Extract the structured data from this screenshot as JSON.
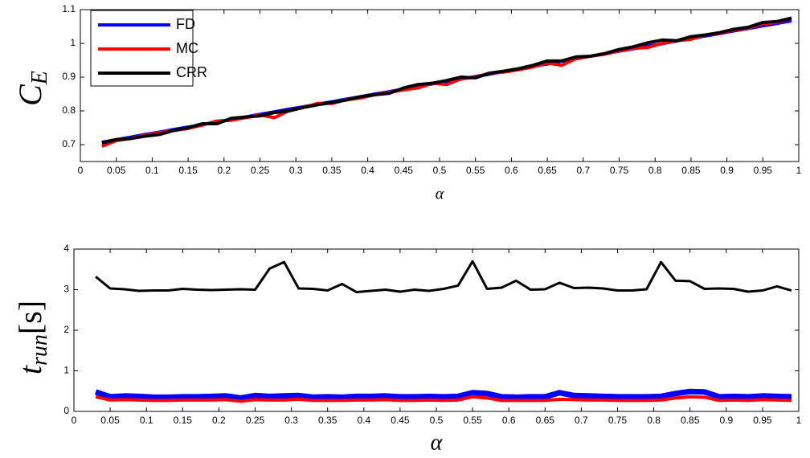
{
  "chart_data": [
    {
      "type": "line",
      "xlabel": "α",
      "ylabel": {
        "text": "C",
        "sub": "E"
      },
      "x": [
        0.03,
        0.05,
        0.07,
        0.09,
        0.11,
        0.13,
        0.15,
        0.17,
        0.19,
        0.21,
        0.23,
        0.25,
        0.27,
        0.29,
        0.31,
        0.33,
        0.35,
        0.37,
        0.39,
        0.41,
        0.43,
        0.45,
        0.47,
        0.49,
        0.51,
        0.53,
        0.55,
        0.57,
        0.59,
        0.61,
        0.63,
        0.65,
        0.67,
        0.69,
        0.71,
        0.73,
        0.75,
        0.77,
        0.79,
        0.81,
        0.83,
        0.85,
        0.87,
        0.89,
        0.91,
        0.93,
        0.95,
        0.97,
        0.99
      ],
      "series": [
        {
          "name": "FD",
          "color": "#0000ff",
          "values": [
            0.707,
            0.715,
            0.722,
            0.73,
            0.737,
            0.745,
            0.752,
            0.76,
            0.767,
            0.775,
            0.782,
            0.79,
            0.797,
            0.805,
            0.812,
            0.82,
            0.827,
            0.835,
            0.842,
            0.85,
            0.857,
            0.865,
            0.872,
            0.88,
            0.887,
            0.894,
            0.902,
            0.909,
            0.917,
            0.924,
            0.932,
            0.939,
            0.947,
            0.954,
            0.962,
            0.969,
            0.977,
            0.984,
            0.992,
            0.999,
            1.007,
            1.014,
            1.022,
            1.029,
            1.037,
            1.044,
            1.052,
            1.059,
            1.067
          ]
        },
        {
          "name": "MC",
          "color": "#ff0000",
          "values": [
            0.695,
            0.712,
            0.718,
            0.728,
            0.735,
            0.742,
            0.748,
            0.758,
            0.77,
            0.772,
            0.78,
            0.788,
            0.78,
            0.8,
            0.81,
            0.822,
            0.822,
            0.833,
            0.838,
            0.848,
            0.855,
            0.862,
            0.868,
            0.882,
            0.878,
            0.895,
            0.9,
            0.912,
            0.915,
            0.922,
            0.93,
            0.942,
            0.935,
            0.955,
            0.962,
            0.968,
            0.978,
            0.985,
            0.988,
            1.0,
            1.008,
            1.012,
            1.025,
            1.03,
            1.04,
            1.045,
            1.058,
            1.062,
            1.075
          ]
        },
        {
          "name": "CRR",
          "color": "#000000",
          "values": [
            0.705,
            0.715,
            0.718,
            0.725,
            0.73,
            0.742,
            0.75,
            0.762,
            0.762,
            0.778,
            0.782,
            0.785,
            0.795,
            0.8,
            0.81,
            0.818,
            0.825,
            0.832,
            0.842,
            0.848,
            0.852,
            0.868,
            0.878,
            0.882,
            0.89,
            0.9,
            0.898,
            0.912,
            0.918,
            0.925,
            0.935,
            0.948,
            0.948,
            0.96,
            0.962,
            0.97,
            0.982,
            0.99,
            1.002,
            1.01,
            1.008,
            1.02,
            1.025,
            1.032,
            1.042,
            1.048,
            1.062,
            1.065,
            1.075
          ]
        }
      ],
      "xlim": [
        0,
        1
      ],
      "xticks": [
        0,
        0.05,
        0.1,
        0.15,
        0.2,
        0.25,
        0.3,
        0.35,
        0.4,
        0.45,
        0.5,
        0.55,
        0.6,
        0.65,
        0.7,
        0.75,
        0.8,
        0.85,
        0.9,
        0.95,
        1
      ],
      "ylim": [
        0.65,
        1.1
      ],
      "yticks": [
        0.7,
        0.8,
        0.9,
        1,
        1.1
      ],
      "legend": "upper left"
    },
    {
      "type": "line",
      "xlabel": "α",
      "ylabel": {
        "text": "t",
        "sub": "run",
        "after": "[s]"
      },
      "x": [
        0.03,
        0.05,
        0.07,
        0.09,
        0.11,
        0.13,
        0.15,
        0.17,
        0.19,
        0.21,
        0.23,
        0.25,
        0.27,
        0.29,
        0.31,
        0.33,
        0.35,
        0.37,
        0.39,
        0.41,
        0.43,
        0.45,
        0.47,
        0.49,
        0.51,
        0.53,
        0.55,
        0.57,
        0.59,
        0.61,
        0.63,
        0.65,
        0.67,
        0.69,
        0.71,
        0.73,
        0.75,
        0.77,
        0.79,
        0.81,
        0.83,
        0.85,
        0.87,
        0.89,
        0.91,
        0.93,
        0.95,
        0.97,
        0.99
      ],
      "series": [
        {
          "color": "#0000ff",
          "values": [
            0.48,
            0.36,
            0.38,
            0.37,
            0.35,
            0.35,
            0.36,
            0.36,
            0.37,
            0.38,
            0.33,
            0.39,
            0.37,
            0.38,
            0.39,
            0.35,
            0.36,
            0.35,
            0.37,
            0.37,
            0.38,
            0.36,
            0.36,
            0.37,
            0.36,
            0.37,
            0.46,
            0.44,
            0.36,
            0.35,
            0.36,
            0.36,
            0.46,
            0.39,
            0.38,
            0.37,
            0.36,
            0.36,
            0.36,
            0.37,
            0.44,
            0.49,
            0.48,
            0.36,
            0.37,
            0.36,
            0.38,
            0.37,
            0.36
          ]
        },
        {
          "color": "#ff0000",
          "values": [
            0.36,
            0.28,
            0.29,
            0.28,
            0.27,
            0.27,
            0.28,
            0.28,
            0.28,
            0.29,
            0.25,
            0.29,
            0.28,
            0.28,
            0.3,
            0.27,
            0.27,
            0.27,
            0.28,
            0.28,
            0.29,
            0.27,
            0.27,
            0.28,
            0.27,
            0.28,
            0.36,
            0.33,
            0.27,
            0.27,
            0.27,
            0.27,
            0.3,
            0.29,
            0.28,
            0.28,
            0.27,
            0.27,
            0.27,
            0.28,
            0.33,
            0.36,
            0.35,
            0.27,
            0.28,
            0.27,
            0.29,
            0.28,
            0.27
          ]
        },
        {
          "color": "#000000",
          "values": [
            3.32,
            3.03,
            3.01,
            2.97,
            2.98,
            2.98,
            3.02,
            3.0,
            2.99,
            3.0,
            3.01,
            3.0,
            3.52,
            3.68,
            3.03,
            3.02,
            2.98,
            3.14,
            2.94,
            2.97,
            3.0,
            2.95,
            3.0,
            2.97,
            3.02,
            3.1,
            3.7,
            3.02,
            3.05,
            3.22,
            3.0,
            3.01,
            3.17,
            3.04,
            3.05,
            3.03,
            2.98,
            2.98,
            3.01,
            3.68,
            3.22,
            3.21,
            3.02,
            3.03,
            3.02,
            2.95,
            2.98,
            3.08,
            2.98
          ]
        }
      ],
      "xlim": [
        0,
        1
      ],
      "xticks": [
        0,
        0.05,
        0.1,
        0.15,
        0.2,
        0.25,
        0.3,
        0.35,
        0.4,
        0.45,
        0.5,
        0.55,
        0.6,
        0.65,
        0.7,
        0.75,
        0.8,
        0.85,
        0.9,
        0.95,
        1
      ],
      "ylim": [
        0,
        4
      ],
      "yticks": [
        0,
        1,
        2,
        3,
        4
      ]
    }
  ]
}
